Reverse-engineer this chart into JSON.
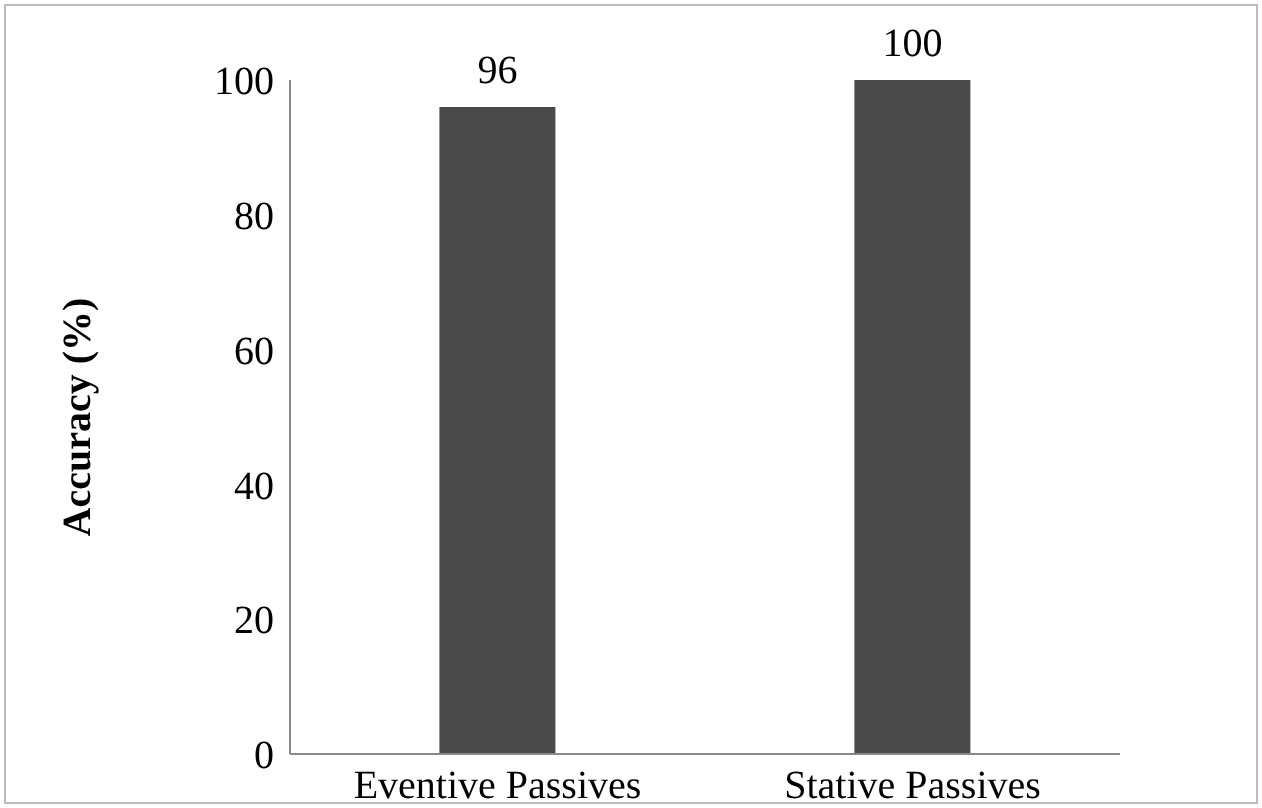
{
  "chart_data": {
    "type": "bar",
    "ylabel": "Accuracy (%)",
    "categories": [
      "Eventive Passives",
      "Stative Passives"
    ],
    "values": [
      96,
      100
    ],
    "color": "#4a4a4a",
    "ylim": [
      0,
      100
    ],
    "yticks": [
      0,
      20,
      40,
      60,
      80,
      100
    ],
    "data_labels": true,
    "grid": false,
    "legend": false
  }
}
